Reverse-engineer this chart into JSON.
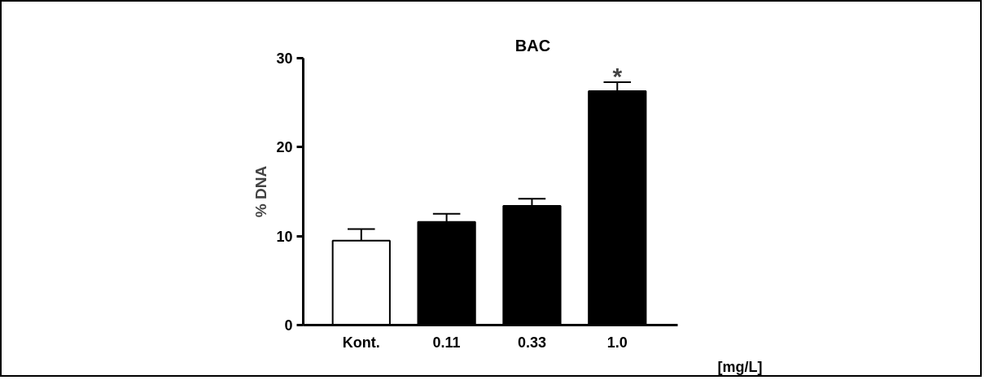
{
  "chart_data": {
    "type": "bar",
    "title": "BAC",
    "ylabel": "% DNA",
    "xlabel": "[mg/L]",
    "categories": [
      "Kont.",
      "0.11",
      "0.33",
      "1.0"
    ],
    "values": [
      9.5,
      11.6,
      13.4,
      26.3
    ],
    "colors": [
      "#ffffff",
      "#000000",
      "#000000",
      "#000000"
    ],
    "errors": [
      [
        9.5,
        10.8
      ],
      [
        11.6,
        12.5
      ],
      [
        13.4,
        14.2
      ],
      [
        26.3,
        27.3
      ]
    ],
    "ylim": [
      0,
      30
    ],
    "yticks": [
      0,
      10,
      20,
      30
    ],
    "grid": false,
    "annotations": [
      "*"
    ]
  }
}
